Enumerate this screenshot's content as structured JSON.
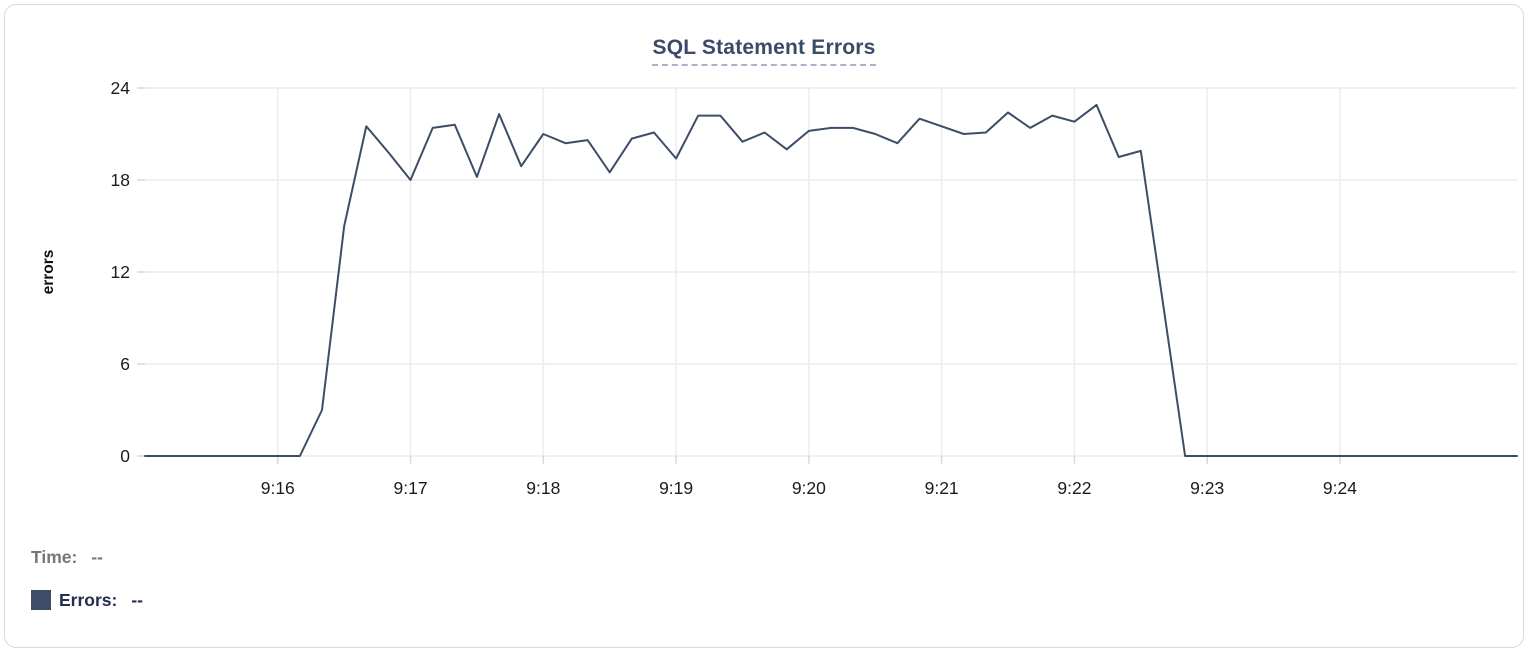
{
  "card": {
    "kind": "chart-panel"
  },
  "chart_data": {
    "type": "line",
    "title": "SQL Statement Errors",
    "xlabel": "",
    "ylabel": "errors",
    "y_ticks": [
      0,
      6,
      12,
      18,
      24
    ],
    "ylim": [
      0,
      24
    ],
    "x_tick_labels": [
      "9:16",
      "9:17",
      "9:18",
      "9:19",
      "9:20",
      "9:21",
      "9:22",
      "9:23",
      "9:24"
    ],
    "x_start": "9:15:00",
    "x_end": "9:25:20",
    "interval_seconds": 10,
    "grid": true,
    "legend_position": "below-left",
    "series": [
      {
        "name": "Errors",
        "color": "#3d4d68",
        "times": [
          "9:15:00",
          "9:15:10",
          "9:15:20",
          "9:15:30",
          "9:15:40",
          "9:15:50",
          "9:16:00",
          "9:16:10",
          "9:16:20",
          "9:16:30",
          "9:16:40",
          "9:16:50",
          "9:17:00",
          "9:17:10",
          "9:17:20",
          "9:17:30",
          "9:17:40",
          "9:17:50",
          "9:18:00",
          "9:18:10",
          "9:18:20",
          "9:18:30",
          "9:18:40",
          "9:18:50",
          "9:19:00",
          "9:19:10",
          "9:19:20",
          "9:19:30",
          "9:19:40",
          "9:19:50",
          "9:20:00",
          "9:20:10",
          "9:20:20",
          "9:20:30",
          "9:20:40",
          "9:20:50",
          "9:21:00",
          "9:21:10",
          "9:21:20",
          "9:21:30",
          "9:21:40",
          "9:21:50",
          "9:22:00",
          "9:22:10",
          "9:22:20",
          "9:22:30",
          "9:22:40",
          "9:22:50",
          "9:23:00",
          "9:23:10",
          "9:23:20",
          "9:23:30",
          "9:23:40",
          "9:23:50",
          "9:24:00",
          "9:24:10",
          "9:24:20",
          "9:24:30",
          "9:24:40",
          "9:24:50",
          "9:25:00",
          "9:25:10",
          "9:25:20"
        ],
        "values": [
          0,
          0,
          0,
          0,
          0,
          0,
          0,
          0,
          3,
          15,
          21.5,
          19.8,
          18,
          21.4,
          21.6,
          18.2,
          22.3,
          18.9,
          21,
          20.4,
          20.6,
          18.5,
          20.7,
          21.1,
          19.4,
          22.2,
          22.2,
          20.5,
          21.1,
          20,
          21.2,
          21.4,
          21.4,
          21,
          20.4,
          22,
          21.5,
          21,
          21.1,
          22.4,
          21.4,
          22.2,
          21.8,
          22.9,
          19.5,
          19.9,
          10,
          0,
          0,
          0,
          0,
          0,
          0,
          0,
          0,
          0,
          0,
          0,
          0,
          0,
          0,
          0,
          0
        ]
      }
    ]
  },
  "tooltip": {
    "time_label": "Time:",
    "time_value": "--",
    "errors_label": "Errors:",
    "errors_value": "--"
  },
  "colors": {
    "series": "#3d4d68",
    "title": "#3b4a68",
    "title_underline": "#a9b2c6",
    "gridline": "#ececec",
    "tick_stub": "#d9d9d9",
    "tick_text": "#1b1b1b",
    "axis_label": "#111111",
    "card_border": "#d8d9de",
    "tooltip_time": "#75777c",
    "tooltip_errors": "#242e4e"
  }
}
